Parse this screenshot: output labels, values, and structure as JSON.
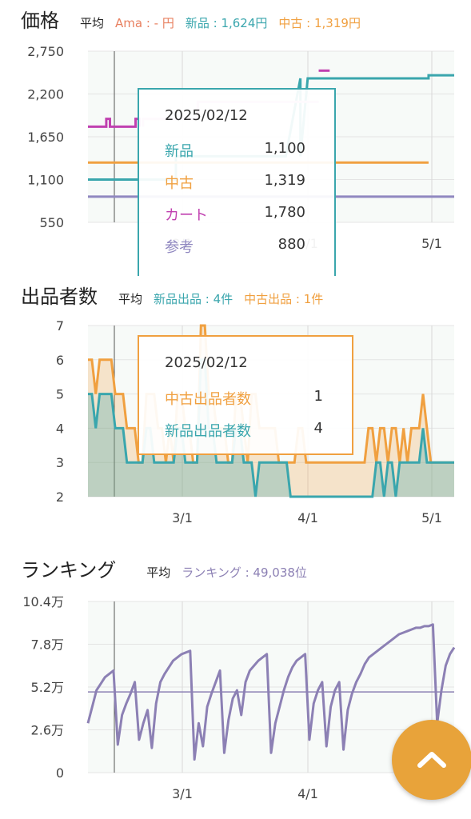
{
  "price": {
    "title": "価格",
    "avg_label": "平均",
    "ama": "Ama : - 円",
    "new": "新品 : 1,624円",
    "used": "中古 : 1,319円"
  },
  "sellers": {
    "title": "出品者数",
    "avg_label": "平均",
    "new": "新品出品 : 4件",
    "used": "中古出品 : 1件"
  },
  "ranking": {
    "title": "ランキング",
    "avg_label": "平均",
    "rank": "ランキング : 49,038位"
  },
  "tooltip_price": {
    "date": "2025/02/12",
    "rows": [
      {
        "label": "新品",
        "value": "1,100"
      },
      {
        "label": "中古",
        "value": "1,319"
      },
      {
        "label": "カート",
        "value": "1,780"
      },
      {
        "label": "参考",
        "value": "880"
      }
    ]
  },
  "tooltip_sellers": {
    "date": "2025/02/12",
    "rows": [
      {
        "label": "中古出品者数",
        "value": "1"
      },
      {
        "label": "新品出品者数",
        "value": "4"
      }
    ]
  },
  "colors": {
    "new": "#3aa6ad",
    "used": "#f0a040",
    "cart": "#c040b0",
    "ref": "#9088c0",
    "ama": "#e88060",
    "rank": "#8c80b4",
    "fab": "#e8a33a"
  },
  "fab_icon": "chevron-up-icon",
  "chart_data": [
    {
      "type": "line",
      "ylim": [
        550,
        2750
      ],
      "yticks": [
        "2,750",
        "2,200",
        "1,650",
        "1,100",
        "550"
      ],
      "xticks": [
        "3/1",
        "4/1",
        "5/1"
      ],
      "series": [
        {
          "name": "新品",
          "color": "#3aa6ad",
          "points": [
            [
              0,
              1100
            ],
            [
              24,
              1100
            ],
            [
              24,
              1400
            ],
            [
              54,
              1400
            ],
            [
              54,
              1400
            ],
            [
              58,
              2400
            ],
            [
              58,
              1400
            ],
            [
              60,
              2400
            ],
            [
              62,
              2400
            ],
            [
              62,
              2400
            ],
            [
              93,
              2400
            ],
            [
              93,
              2440
            ],
            [
              100,
              2440
            ]
          ]
        },
        {
          "name": "中古",
          "color": "#f0a040",
          "points": [
            [
              0,
              1319
            ],
            [
              93,
              1319
            ]
          ]
        },
        {
          "name": "カート",
          "color": "#c040b0",
          "points": [
            [
              0,
              1780
            ],
            [
              5,
              1780
            ],
            [
              5,
              1880
            ],
            [
              6,
              1880
            ],
            [
              6,
              1780
            ],
            [
              13,
              1780
            ],
            [
              13,
              1880
            ],
            [
              14,
              1880
            ],
            [
              14,
              1780
            ]
          ]
        },
        {
          "name": "カート",
          "color": "#e8b0e0",
          "points": [
            [
              15,
              1780
            ],
            [
              15,
              1880
            ],
            [
              30,
              1880
            ],
            [
              30,
              2100
            ],
            [
              63,
              2100
            ]
          ]
        },
        {
          "name": "カート",
          "color": "#c040b0",
          "points": [
            [
              63,
              2500
            ],
            [
              66,
              2500
            ]
          ]
        },
        {
          "name": "参考",
          "color": "#9088c0",
          "points": [
            [
              0,
              880
            ],
            [
              100,
              880
            ]
          ]
        }
      ]
    },
    {
      "type": "area",
      "ylim": [
        2,
        7
      ],
      "yticks": [
        "7",
        "6",
        "5",
        "4",
        "3",
        "2"
      ],
      "xticks": [
        "3/1",
        "4/1",
        "5/1"
      ],
      "series": [
        {
          "name": "中古出品者数",
          "color": "#f0a040",
          "values": [
            6,
            6,
            5,
            6,
            6,
            6,
            6,
            5,
            5,
            5,
            4,
            4,
            4,
            3,
            3,
            5,
            5,
            5,
            4,
            4,
            3,
            4,
            3,
            5,
            5,
            4,
            4,
            3,
            3,
            7,
            7,
            5,
            5,
            4,
            4,
            4,
            3,
            3,
            5,
            5,
            4,
            3,
            5,
            5,
            4,
            4,
            4,
            4,
            4,
            3,
            3,
            3,
            3,
            3,
            4,
            4,
            3,
            3,
            3,
            3,
            3,
            3,
            3,
            3,
            3,
            3,
            3,
            3,
            3,
            3,
            3,
            3,
            4,
            4,
            3,
            4,
            4,
            3,
            4,
            4,
            3,
            4,
            3,
            4,
            4,
            4,
            5,
            4,
            3,
            3,
            3,
            3,
            3,
            3,
            3
          ]
        },
        {
          "name": "新品出品者数",
          "color": "#3aa6ad",
          "values": [
            5,
            5,
            4,
            5,
            5,
            5,
            5,
            4,
            4,
            4,
            3,
            3,
            3,
            3,
            3,
            4,
            4,
            3,
            3,
            3,
            3,
            3,
            3,
            4,
            4,
            3,
            3,
            3,
            3,
            6,
            6,
            4,
            4,
            3,
            3,
            3,
            3,
            3,
            4,
            4,
            3,
            3,
            3,
            2,
            3,
            3,
            3,
            3,
            3,
            3,
            3,
            3,
            2,
            2,
            2,
            2,
            2,
            2,
            2,
            2,
            2,
            2,
            2,
            2,
            2,
            2,
            2,
            2,
            2,
            2,
            2,
            2,
            2,
            2,
            3,
            3,
            2,
            3,
            3,
            2,
            3,
            3,
            3,
            3,
            3,
            3,
            4,
            3,
            3,
            3,
            3,
            3,
            3,
            3,
            3
          ]
        }
      ]
    },
    {
      "type": "line",
      "ylim": [
        0,
        104000
      ],
      "yticks": [
        "10.4万",
        "7.8万",
        "5.2万",
        "2.6万",
        "0"
      ],
      "xticks": [
        "3/1",
        "4/1"
      ],
      "series": [
        {
          "name": "ランキング",
          "color": "#8c80b4",
          "values": [
            30000,
            40000,
            50000,
            54000,
            58000,
            60000,
            62000,
            17000,
            35000,
            42000,
            48000,
            55000,
            20000,
            30000,
            38000,
            15000,
            42000,
            55000,
            60000,
            64000,
            68000,
            70000,
            72000,
            73000,
            74000,
            8000,
            30000,
            16000,
            40000,
            48000,
            55000,
            62000,
            12000,
            32000,
            45000,
            50000,
            35000,
            55000,
            62000,
            65000,
            68000,
            70000,
            72000,
            12000,
            30000,
            40000,
            50000,
            58000,
            64000,
            68000,
            70000,
            72000,
            20000,
            42000,
            50000,
            55000,
            16000,
            40000,
            50000,
            55000,
            14000,
            38000,
            48000,
            55000,
            60000,
            66000,
            70000,
            72000,
            74000,
            76000,
            78000,
            80000,
            82000,
            84000,
            85000,
            86000,
            87000,
            88000,
            88000,
            89000,
            89000,
            90000,
            30000,
            50000,
            65000,
            72000,
            76000
          ]
        }
      ]
    }
  ]
}
